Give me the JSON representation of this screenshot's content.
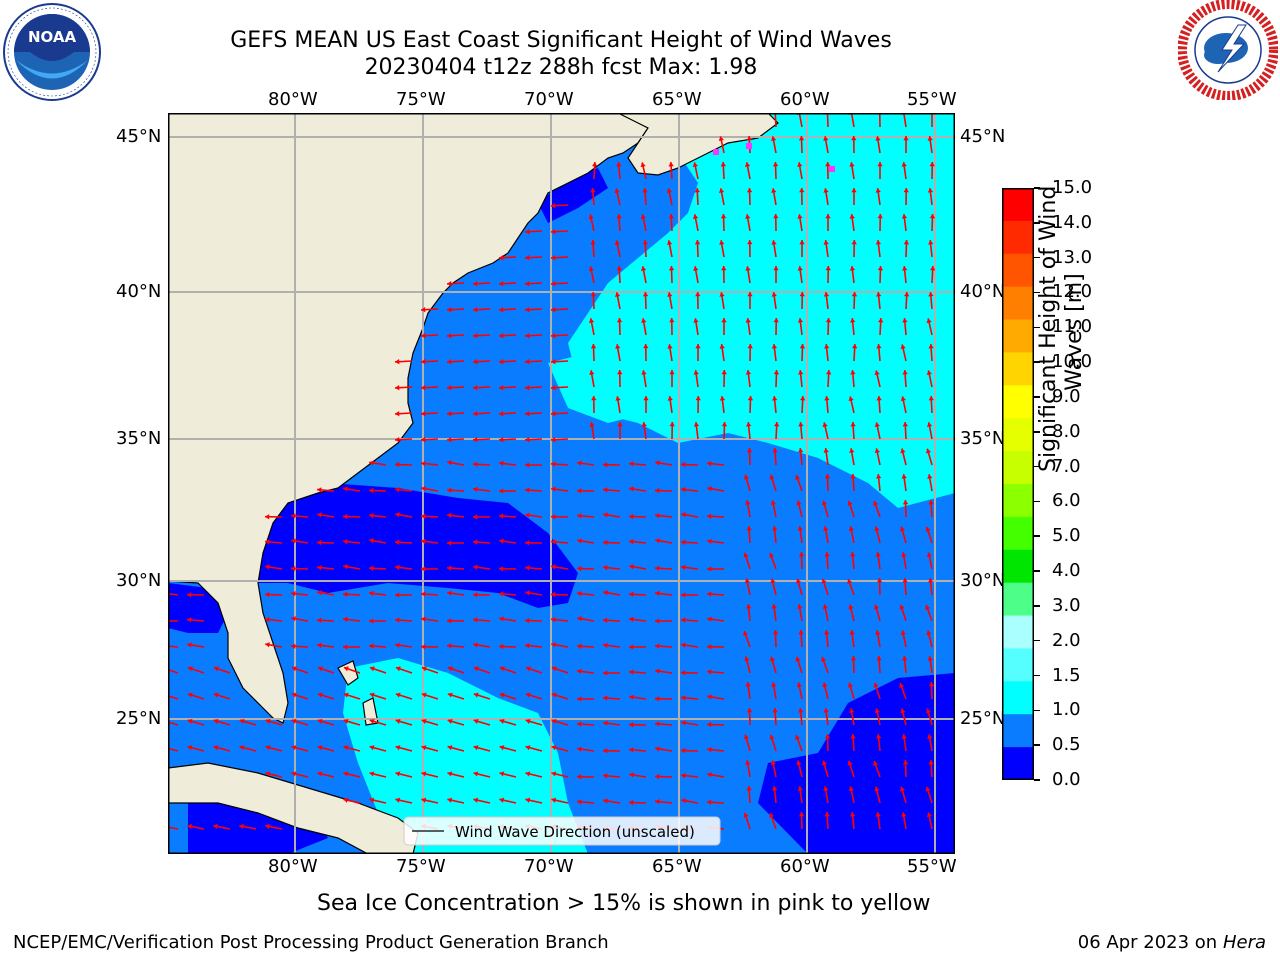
{
  "header": {
    "title_line1": "GEFS MEAN US East Coast Significant Height of Wind Waves",
    "title_line2": "20230404 t12z 288h fcst   Max: 1.98"
  },
  "logos": {
    "left": {
      "icon": "noaa-logo",
      "text": "NOAA",
      "ring_text": "NATIONAL OCEANIC AND ATMOSPHERIC ADMINISTRATION · U.S. DEPARTMENT OF COMMERCE"
    },
    "right": {
      "icon": "nws-logo",
      "ring_text": "NATIONAL WEATHER SERVICE"
    }
  },
  "map": {
    "lon_labels": [
      "80°W",
      "75°W",
      "70°W",
      "65°W",
      "60°W",
      "55°W"
    ],
    "lat_labels": [
      "45°N",
      "40°N",
      "35°N",
      "30°N",
      "25°N"
    ],
    "legend_label": "Wind Wave Direction (unscaled)",
    "colors": {
      "land": "#efecd9",
      "level_0_05": "#0000ff",
      "level_05_10": "#0a7cff",
      "level_10_15": "#00ffff",
      "arrow": "#ff0000",
      "ice": "#ff33ff",
      "grid": "#b0b0b0"
    }
  },
  "colorbar": {
    "label_line1": "Significant Height of Wind",
    "label_line2": "Waves [m]",
    "ticks": [
      "15.0",
      "14.0",
      "13.0",
      "12.0",
      "11.0",
      "10.0",
      "9.0",
      "8.0",
      "7.0",
      "6.0",
      "5.0",
      "4.0",
      "3.0",
      "2.0",
      "1.5",
      "1.0",
      "0.5",
      "0.0"
    ],
    "colors_top_to_bottom": [
      "#ff0000",
      "#ff2a00",
      "#ff5500",
      "#ff8000",
      "#ffaa00",
      "#ffd400",
      "#ffff00",
      "#e6ff00",
      "#c8ff00",
      "#8cff00",
      "#44ff00",
      "#00e600",
      "#4dff88",
      "#aaffff",
      "#55ffff",
      "#00ffff",
      "#0a7cff",
      "#0000ff"
    ]
  },
  "footer": {
    "ice_note": "Sea Ice Concentration > 15% is shown in pink to yellow",
    "credit": "NCEP/EMC/Verification Post Processing Product Generation Branch",
    "date": "06 Apr 2023 on",
    "machine": "Hera"
  }
}
